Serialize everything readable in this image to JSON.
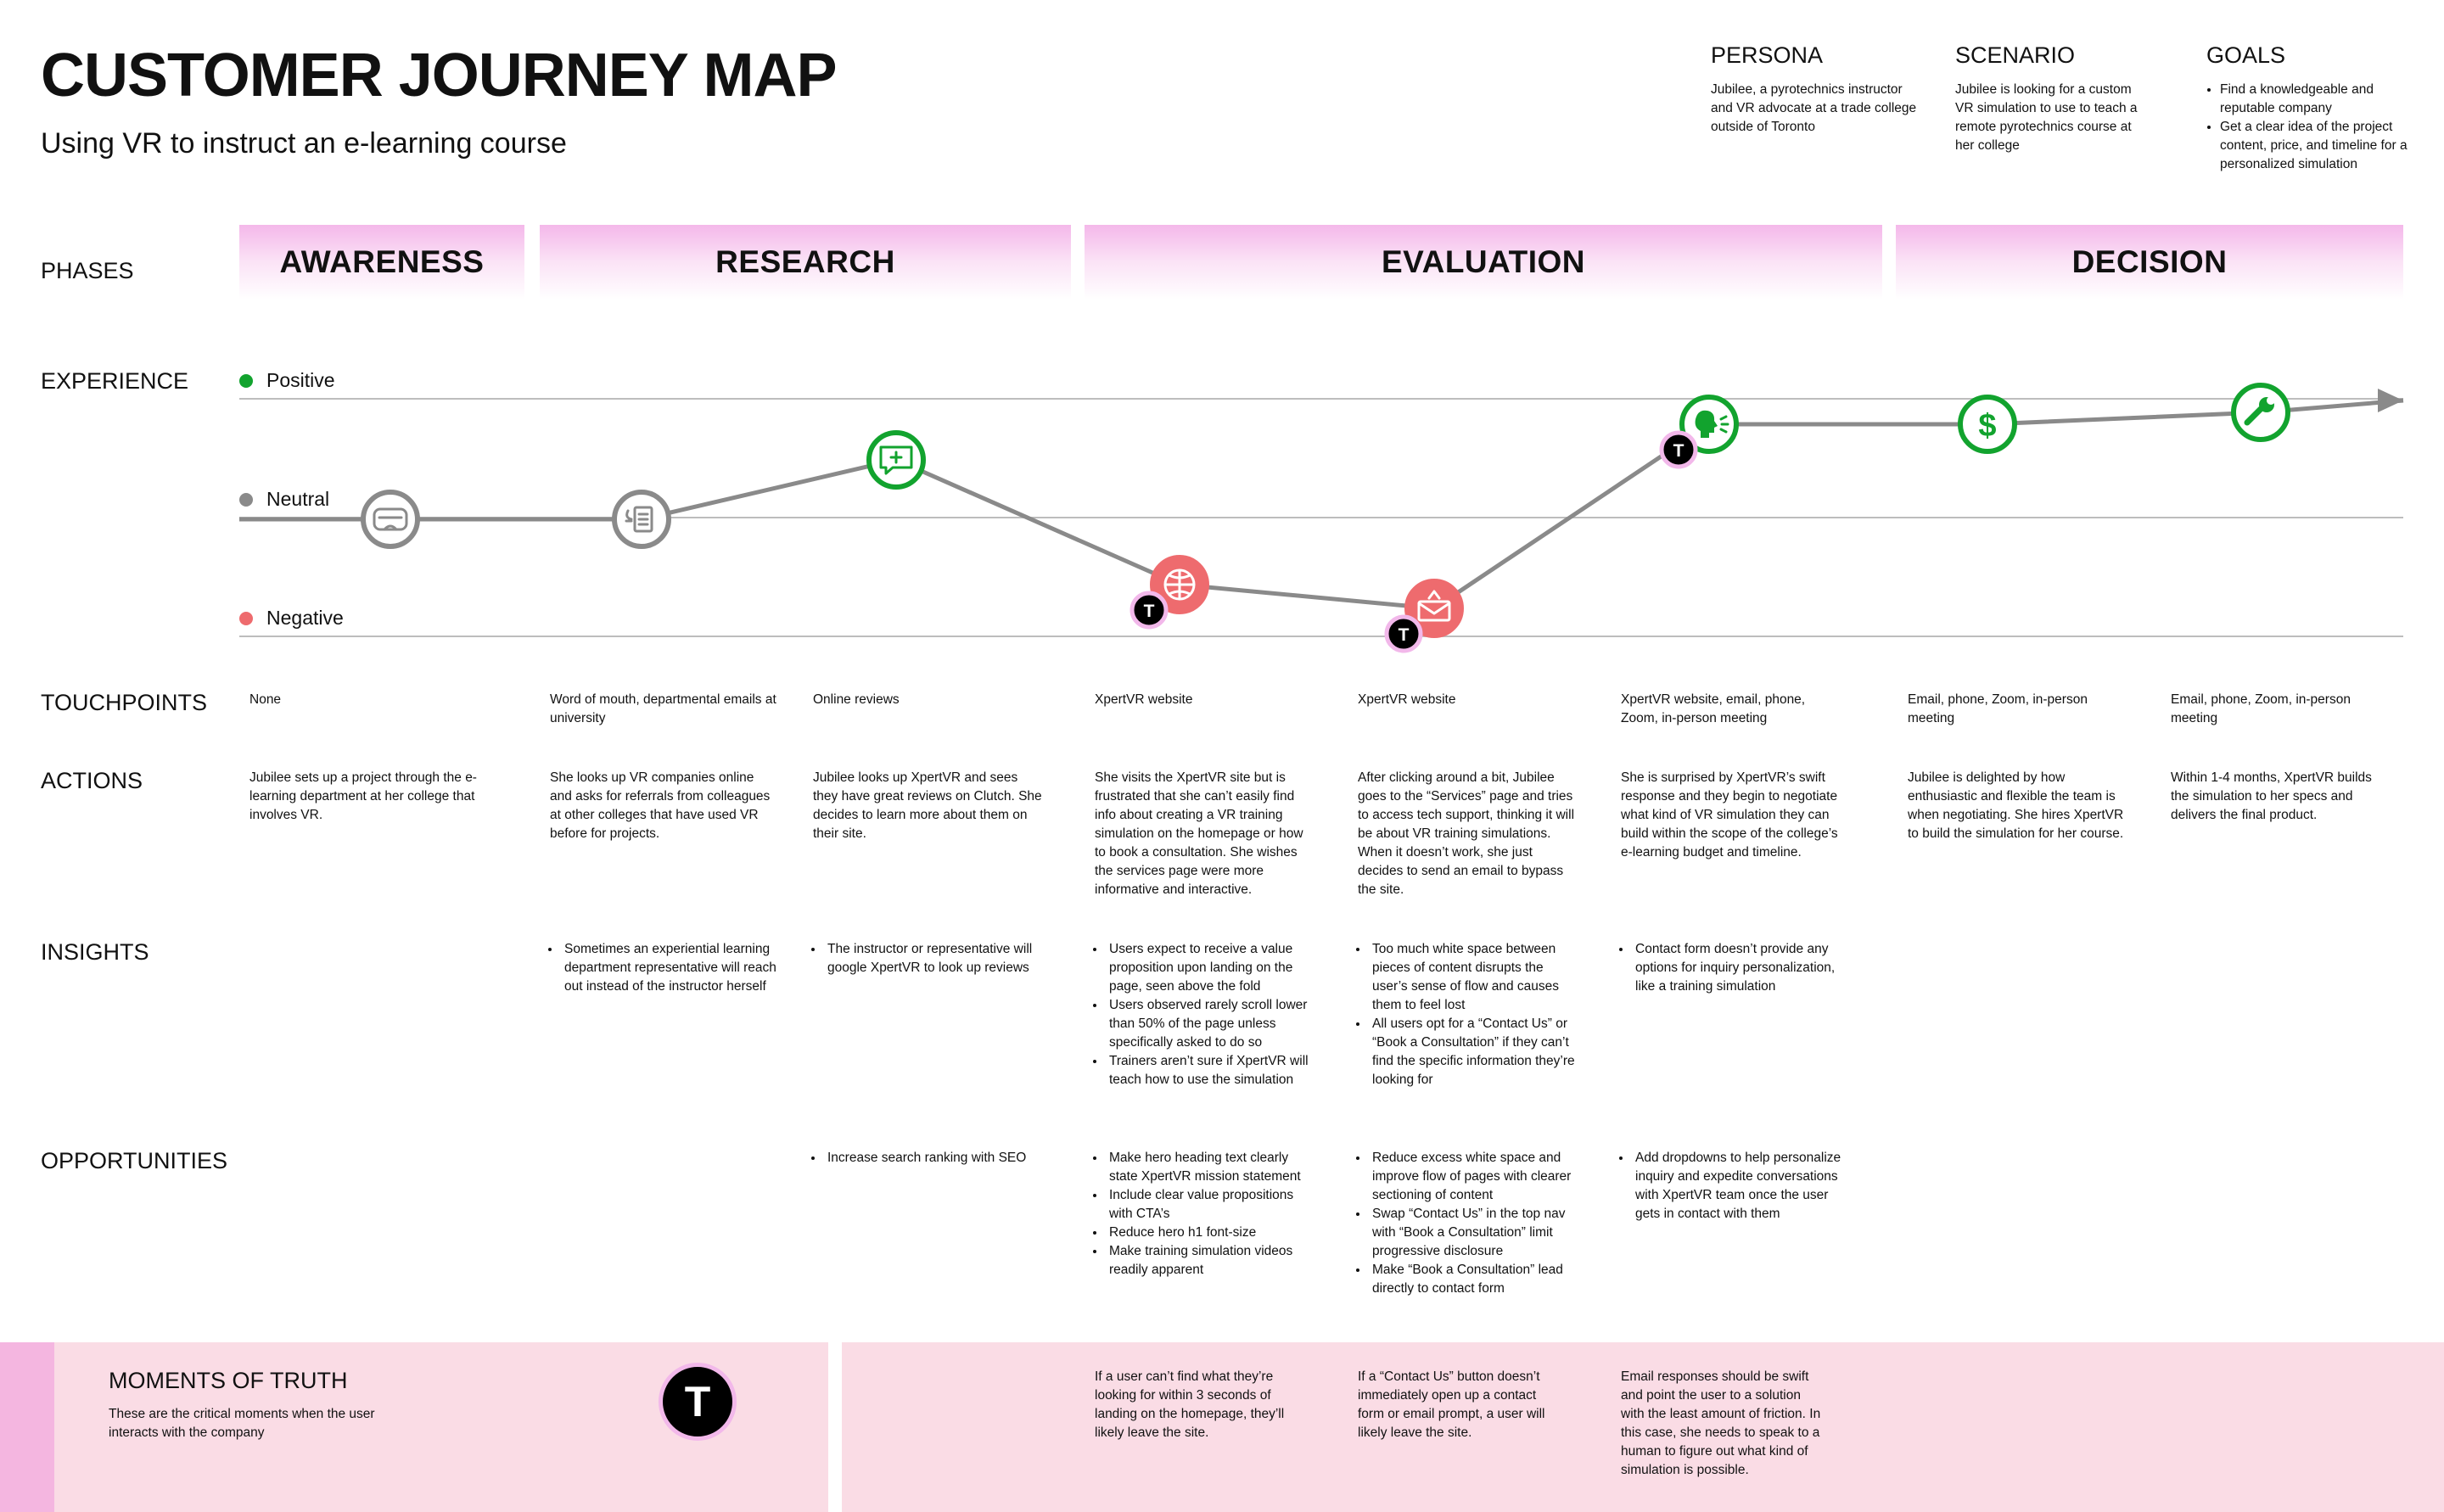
{
  "header": {
    "title": "CUSTOMER JOURNEY MAP",
    "subtitle": "Using VR to instruct an e-learning course"
  },
  "persona": {
    "heading": "PERSONA",
    "text": "Jubilee, a pyrotechnics instructor and VR advocate at a trade college outside of Toronto"
  },
  "scenario": {
    "heading": "SCENARIO",
    "text": "Jubilee is looking for a custom VR simulation to use to teach a remote pyrotechnics course at her college"
  },
  "goals": {
    "heading": "GOALS",
    "items": [
      "Find a knowledgeable and reputable company",
      "Get a clear idea of the project content, price, and timeline for a personalized simulation"
    ]
  },
  "labels": {
    "phases": "PHASES",
    "experience": "EXPERIENCE",
    "touchpoints": "TOUCHPOINTS",
    "actions": "ACTIONS",
    "insights": "INSIGHTS",
    "opportunities": "OPPORTUNITIES"
  },
  "phases": [
    "AWARENESS",
    "RESEARCH",
    "EVALUATION",
    "DECISION"
  ],
  "experience_legend": {
    "positive": "Positive",
    "neutral": "Neutral",
    "negative": "Negative"
  },
  "colors": {
    "positive": "#12a32e",
    "neutral": "#8a8a8a",
    "negative": "#ee6b6e",
    "phase_band": "#f4b8ea",
    "moment_badge_ring": "#f2b8ea",
    "moments_panel": "#fadce5"
  },
  "journey": [
    {
      "sentiment": "neutral",
      "level": 0,
      "icon": "vr-headset-icon",
      "moment_of_truth": false
    },
    {
      "sentiment": "neutral",
      "level": 0,
      "icon": "referral-documents-icon",
      "moment_of_truth": false
    },
    {
      "sentiment": "positive",
      "level": 0.5,
      "icon": "review-chat-icon",
      "moment_of_truth": false
    },
    {
      "sentiment": "negative",
      "level": -0.55,
      "icon": "website-globe-icon",
      "moment_of_truth": true
    },
    {
      "sentiment": "negative",
      "level": -0.75,
      "icon": "email-alert-icon",
      "moment_of_truth": true
    },
    {
      "sentiment": "positive",
      "level": 0.8,
      "icon": "speaking-person-icon",
      "moment_of_truth": true
    },
    {
      "sentiment": "positive",
      "level": 0.8,
      "icon": "dollar-icon",
      "moment_of_truth": false
    },
    {
      "sentiment": "positive",
      "level": 0.9,
      "icon": "wrench-icon",
      "moment_of_truth": false
    },
    {
      "sentiment": "positive",
      "level": 1.0,
      "icon": "arrow-head-icon",
      "moment_of_truth": false
    }
  ],
  "touchpoints": [
    "None",
    "Word of mouth, departmental emails at university",
    "Online reviews",
    "XpertVR website",
    "XpertVR website",
    "XpertVR website, email, phone, Zoom, in-person meeting",
    "Email, phone, Zoom, in-person meeting",
    "Email, phone, Zoom, in-person meeting"
  ],
  "actions": [
    "Jubilee sets up a project through the e-learning department at her college that involves VR.",
    "She looks up VR companies online and asks for referrals from colleagues at other colleges that have used VR before for projects.",
    "Jubilee looks up XpertVR and sees they have great reviews on Clutch. She decides to learn more about them on their site.",
    "She visits the XpertVR site but is frustrated that she can’t easily find info about creating a VR training simulation on the homepage or how to book a consultation. She wishes the services page were more informative and interactive.",
    "After clicking around a bit, Jubilee goes to the “Services” page and tries to access tech support, thinking it will be about VR training simulations. When it doesn’t work, she just decides to send an email to bypass the site.",
    "She is surprised by XpertVR’s swift response and they begin to negotiate what kind of VR simulation they can build within the scope of the college’s e-learning budget and timeline.",
    "Jubilee is delighted by how enthusiastic and flexible the team is when negotiating. She hires XpertVR to build the simulation for her course.",
    "Within 1-4 months, XpertVR builds the simulation to her specs and delivers the final product."
  ],
  "insights": [
    [],
    [
      "Sometimes an experiential learning department representative will reach out instead of the instructor herself"
    ],
    [
      "The instructor or representative will google XpertVR to look up reviews"
    ],
    [
      "Users expect to receive a value proposition upon landing on the page, seen above the fold",
      "Users observed rarely scroll lower than 50% of the page unless specifically asked to do so",
      "Trainers aren’t sure if XpertVR will teach how to use the simulation"
    ],
    [
      "Too much white space between pieces of content disrupts the user’s sense of flow and causes them to feel lost",
      "All users opt for a “Contact Us” or “Book a Consultation” if they can’t find the specific information they’re looking for"
    ],
    [
      "Contact form doesn’t provide any options for inquiry personalization, like a training simulation"
    ],
    [],
    []
  ],
  "opportunities": [
    [],
    [],
    [
      "Increase search ranking with SEO"
    ],
    [
      "Make hero heading text clearly state XpertVR mission statement",
      "Include clear value propositions with CTA’s",
      "Reduce hero h1 font-size",
      "Make training simulation videos readily apparent"
    ],
    [
      "Reduce excess white space and improve flow of pages with clearer sectioning of content",
      "Swap “Contact Us” in the top nav with “Book a Consultation” limit progressive disclosure",
      "Make “Book a Consultation” lead directly to contact form"
    ],
    [
      "Add dropdowns to help personalize inquiry and expedite conversations with XpertVR team once the user gets in contact with them"
    ],
    [],
    []
  ],
  "moments_of_truth": {
    "title": "MOMENTS OF TRUTH",
    "description": "These are the critical moments when the user interacts with the company",
    "badge": "T",
    "notes": [
      "If a user can’t find what they’re looking for within 3 seconds of landing on the homepage, they’ll likely leave the site.",
      "If a “Contact Us” button doesn’t immediately open up a contact form or email prompt, a user will likely leave the site.",
      "Email responses should be swift and point the user to a solution with the least amount of friction. In this case, she needs to speak to a human to figure out what kind of simulation is possible."
    ]
  }
}
